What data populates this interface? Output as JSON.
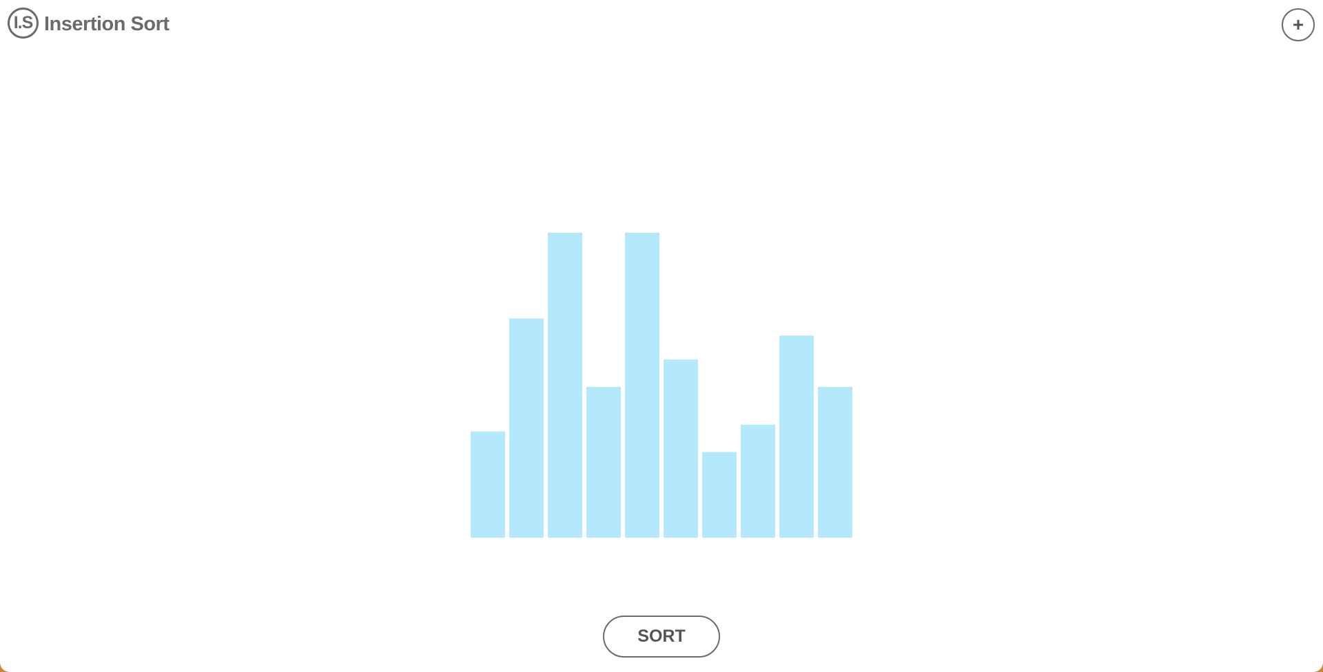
{
  "header": {
    "logo_text": "I.S",
    "title": "Insertion Sort",
    "add_label": "+"
  },
  "controls": {
    "sort_label": "SORT"
  },
  "colors": {
    "bar": "#b3e9fb",
    "text": "#6b6b6b"
  },
  "chart_data": {
    "type": "bar",
    "values": [
      31,
      64,
      89,
      44,
      89,
      52,
      25,
      33,
      59,
      44
    ],
    "ylim": [
      0,
      89
    ]
  }
}
